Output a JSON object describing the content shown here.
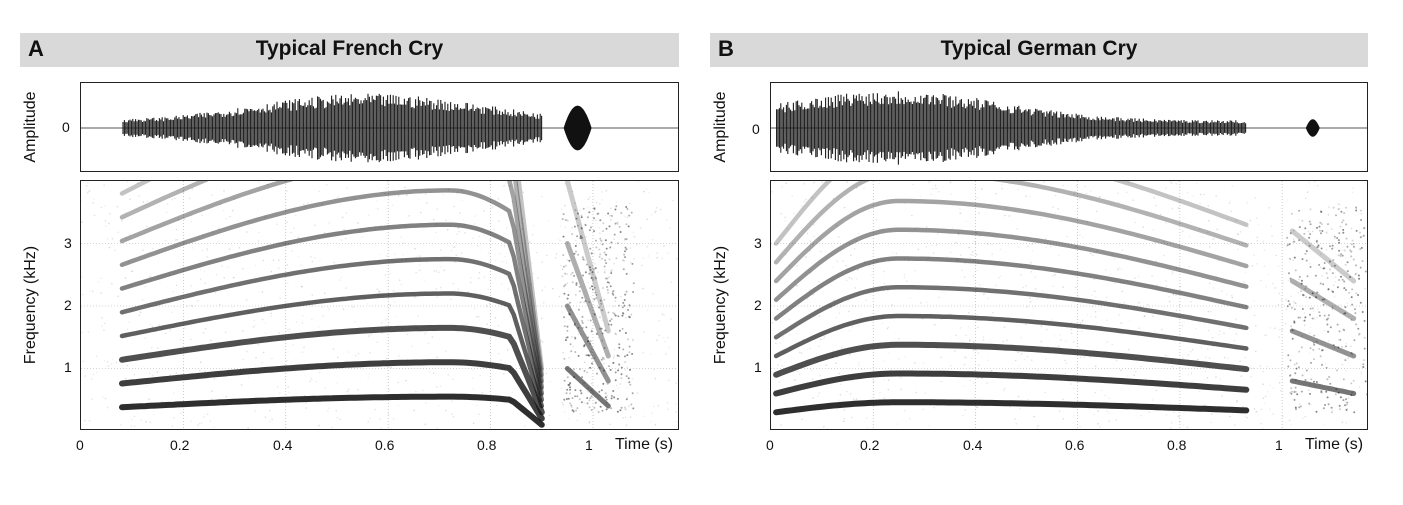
{
  "chart_data": [
    {
      "type": "spectrogram",
      "panel_letter": "A",
      "title": "Typical French Cry",
      "waveform": {
        "ylabel": "Amplitude",
        "yticks": [
          "0"
        ]
      },
      "spectrogram": {
        "ylabel": "Frequency (kHz)",
        "ylim": [
          0,
          4
        ],
        "yticks": [
          "1",
          "2",
          "3"
        ],
        "xlim": [
          0,
          1.17
        ],
        "xticks": [
          "0",
          "0.2",
          "0.4",
          "0.6",
          "0.8",
          "1"
        ],
        "xlabel": "Time (s)",
        "grid": true,
        "voiced_segment": {
          "start": 0.08,
          "end": 0.9,
          "f0_start": 0.38,
          "f0_peak": 0.55,
          "f0_peak_time": 0.72,
          "f0_end": 0.45
        },
        "second_segment": {
          "start": 0.95,
          "end": 1.03
        }
      }
    },
    {
      "type": "spectrogram",
      "panel_letter": "B",
      "title": "Typical German Cry",
      "waveform": {
        "ylabel": "Amplitude",
        "yticks": [
          "0"
        ]
      },
      "spectrogram": {
        "ylabel": "Frequency (kHz)",
        "ylim": [
          0,
          4
        ],
        "yticks": [
          "1",
          "2",
          "3"
        ],
        "xlim": [
          0,
          1.17
        ],
        "xticks": [
          "0",
          "0.2",
          "0.4",
          "0.6",
          "0.8",
          "1"
        ],
        "xlabel": "Time (s)",
        "grid": true,
        "voiced_segment": {
          "start": 0.01,
          "end": 0.93,
          "f0_start": 0.3,
          "f0_peak": 0.46,
          "f0_peak_time": 0.25,
          "f0_end": 0.33
        },
        "second_segment": {
          "start": 1.02,
          "end": 1.14
        }
      }
    }
  ]
}
